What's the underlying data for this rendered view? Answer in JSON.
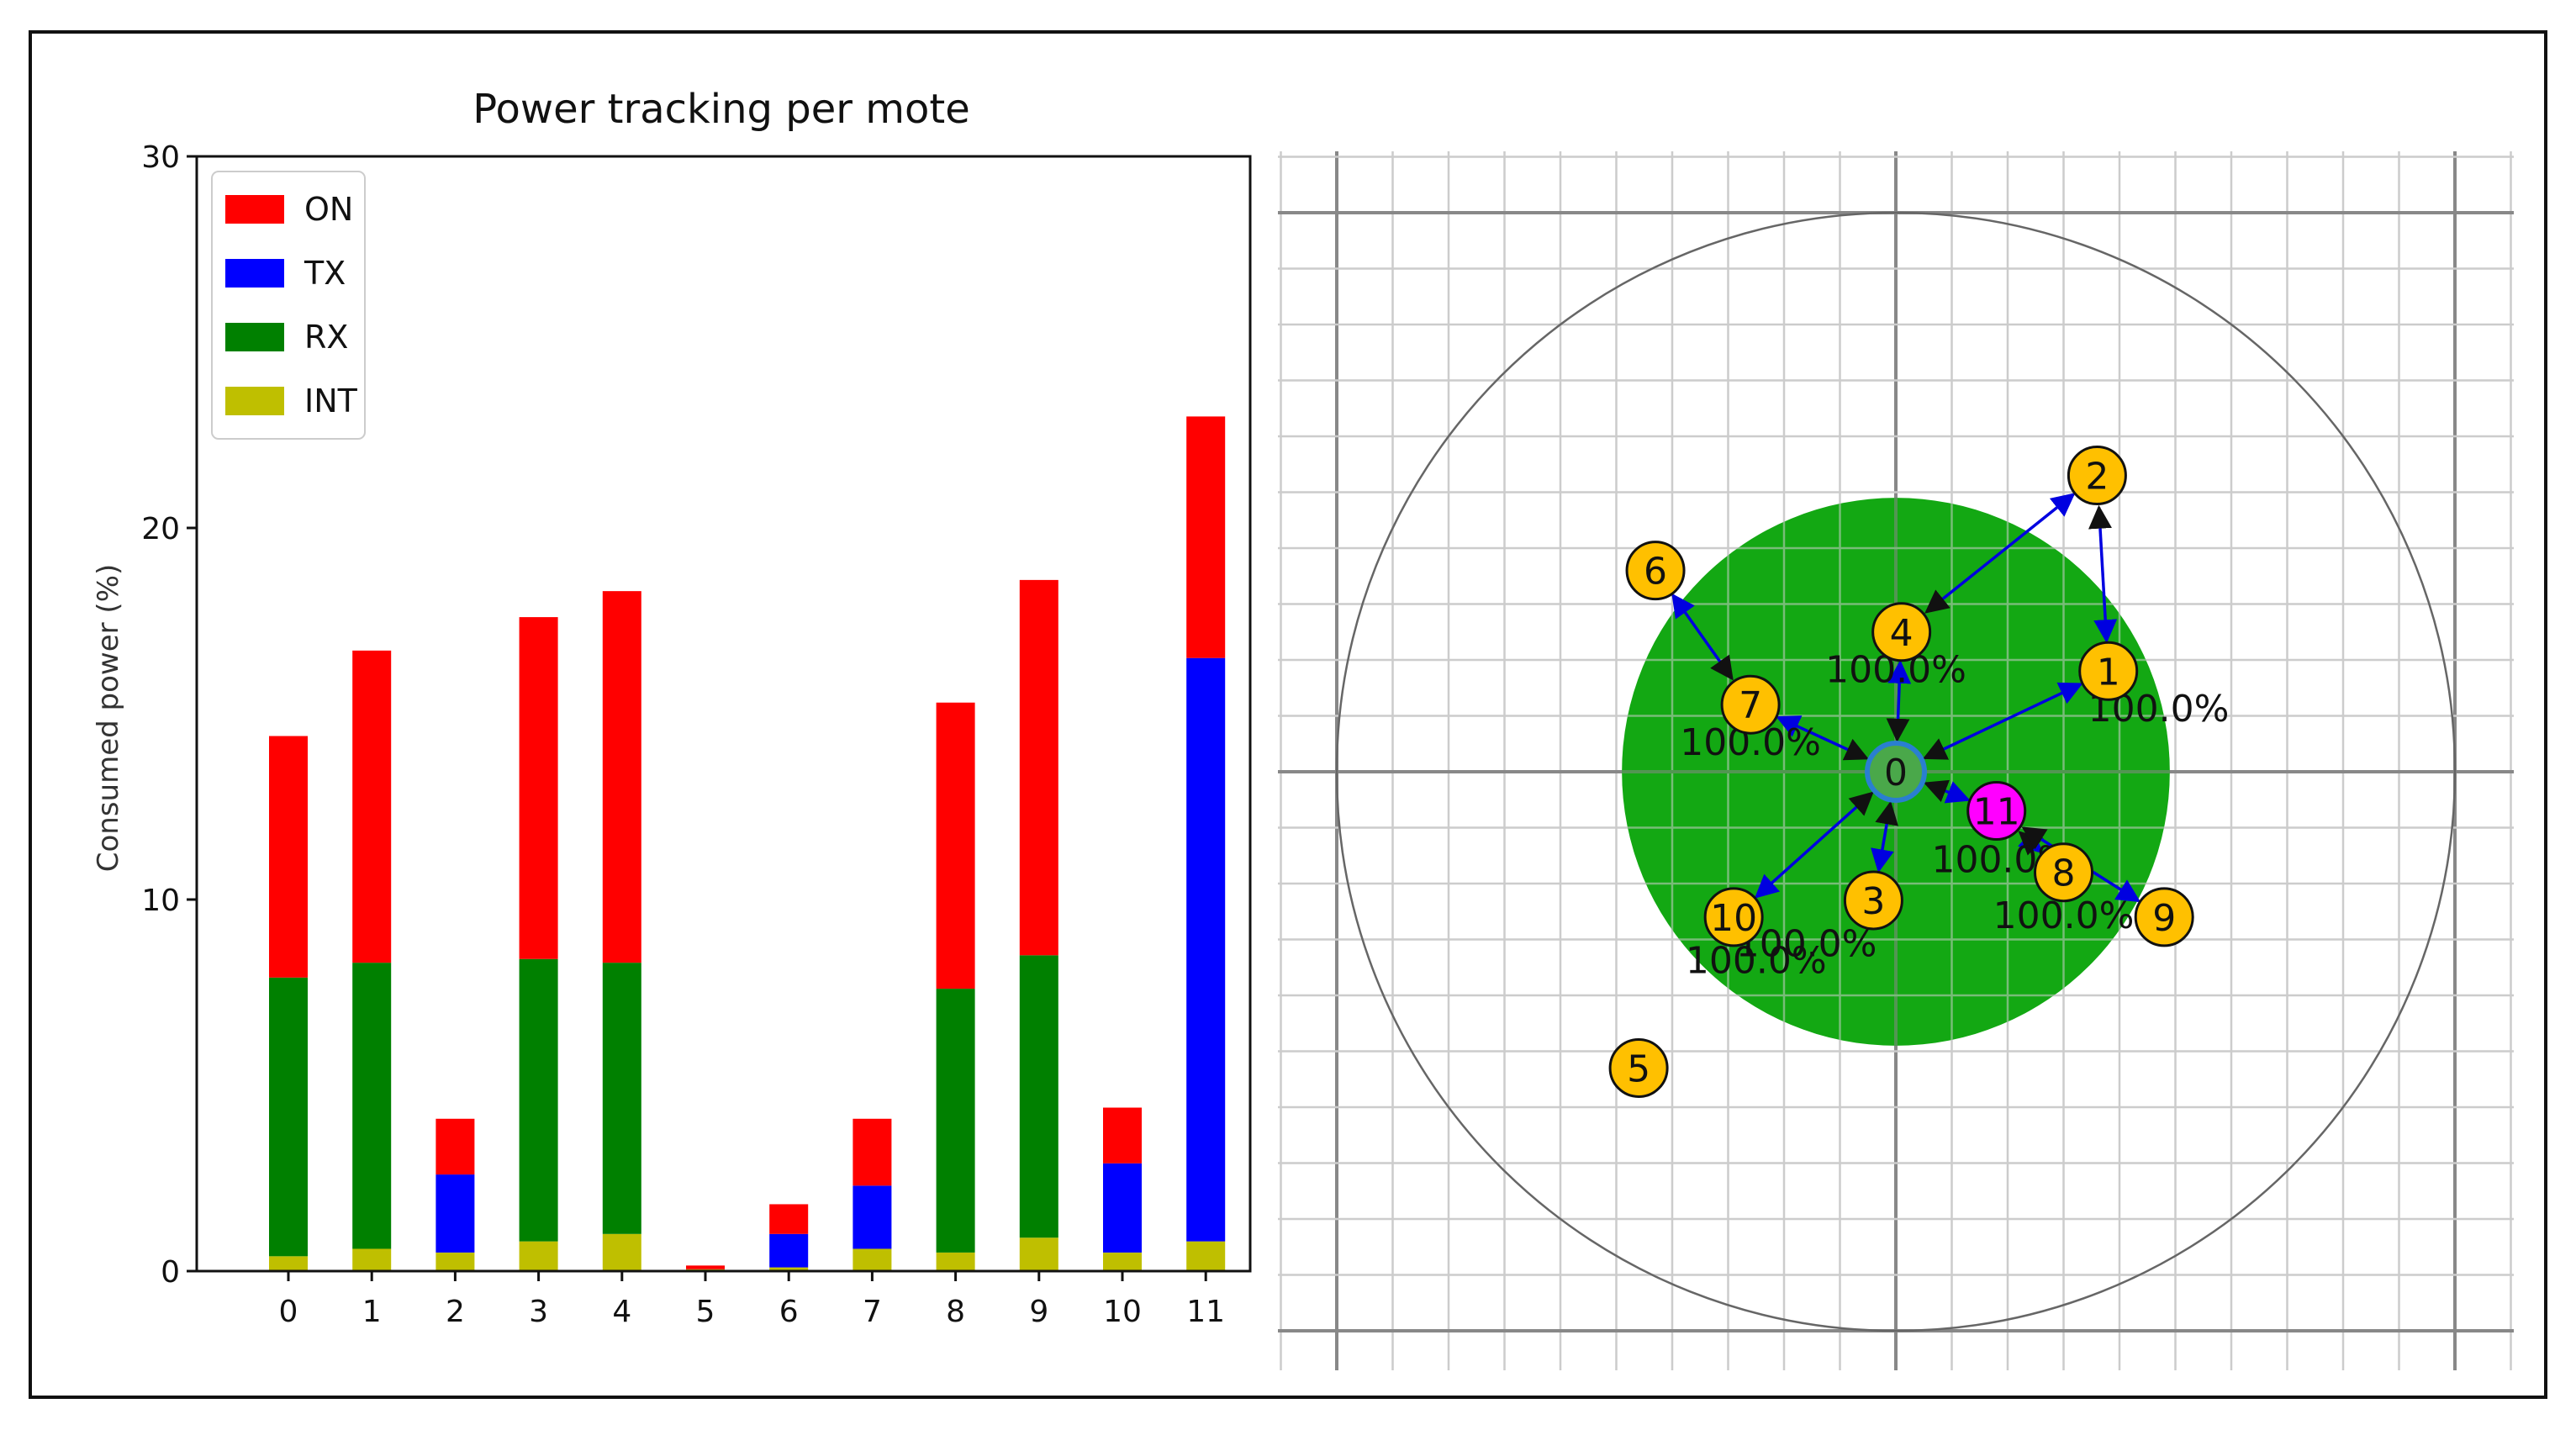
{
  "colors": {
    "on": "#ff0000",
    "tx": "#0000ff",
    "rx": "#008000",
    "int": "#bfbf00",
    "range_fill": "#13a813",
    "mote_fill": "#ffc000",
    "root_fill": "#4aa84a",
    "root_stroke": "#2a7fd0",
    "highlight_mote_fill": "#ff00ff",
    "link": "#0000e0"
  },
  "chart_data": {
    "type": "bar",
    "stacked": true,
    "title": "Power tracking per mote",
    "xlabel": "",
    "ylabel": "Consumed power (%)",
    "ylim": [
      0,
      30
    ],
    "yticks": [
      0,
      10,
      20,
      30
    ],
    "grid": false,
    "legend_position": "top-left",
    "categories": [
      "0",
      "1",
      "2",
      "3",
      "4",
      "5",
      "6",
      "7",
      "8",
      "9",
      "10",
      "11"
    ],
    "series": [
      {
        "name": "INT",
        "color_key": "int",
        "values": [
          0.4,
          0.6,
          0.5,
          0.8,
          1.0,
          0.05,
          0.1,
          0.6,
          0.5,
          0.9,
          0.5,
          0.8
        ]
      },
      {
        "name": "RX",
        "color_key": "rx",
        "values": [
          7.5,
          7.7,
          0.0,
          7.6,
          7.3,
          0.0,
          0.0,
          0.0,
          7.1,
          7.6,
          0.0,
          0.0
        ]
      },
      {
        "name": "TX",
        "color_key": "tx",
        "values": [
          0.0,
          0.0,
          2.1,
          0.0,
          0.0,
          0.0,
          0.9,
          1.7,
          0.0,
          0.0,
          2.4,
          15.7
        ]
      },
      {
        "name": "ON",
        "color_key": "on",
        "values": [
          6.5,
          8.4,
          1.5,
          9.2,
          10.0,
          0.1,
          0.8,
          1.8,
          7.7,
          10.1,
          1.5,
          6.5
        ]
      }
    ],
    "legend": [
      {
        "label": "ON",
        "color_key": "on"
      },
      {
        "label": "TX",
        "color_key": "tx"
      },
      {
        "label": "RX",
        "color_key": "rx"
      },
      {
        "label": "INT",
        "color_key": "int"
      }
    ]
  },
  "network": {
    "plot_type": "mote topology grid",
    "x_range": [
      -10,
      10
    ],
    "y_range": [
      -10,
      10
    ],
    "grid_step": 1,
    "major_step": 10,
    "range_circle_radius": 10,
    "green_region_radius": 5,
    "root_mote": "0",
    "highlight_mote": "11",
    "motes": [
      {
        "id": "0",
        "x": 0.0,
        "y": 0.0
      },
      {
        "id": "1",
        "x": 3.8,
        "y": 1.8
      },
      {
        "id": "2",
        "x": 3.6,
        "y": 5.3
      },
      {
        "id": "3",
        "x": -0.4,
        "y": -2.3
      },
      {
        "id": "4",
        "x": 0.1,
        "y": 2.5
      },
      {
        "id": "5",
        "x": -4.6,
        "y": -5.3
      },
      {
        "id": "6",
        "x": -4.3,
        "y": 3.6
      },
      {
        "id": "7",
        "x": -2.6,
        "y": 1.2
      },
      {
        "id": "8",
        "x": 3.0,
        "y": -1.8
      },
      {
        "id": "9",
        "x": 4.8,
        "y": -2.6
      },
      {
        "id": "10",
        "x": -2.9,
        "y": -2.6
      },
      {
        "id": "11",
        "x": 1.8,
        "y": -0.7
      }
    ],
    "links": [
      {
        "from": "1",
        "to": "0"
      },
      {
        "from": "1",
        "to": "2"
      },
      {
        "from": "2",
        "to": "4"
      },
      {
        "from": "4",
        "to": "0"
      },
      {
        "from": "6",
        "to": "7"
      },
      {
        "from": "7",
        "to": "0"
      },
      {
        "from": "3",
        "to": "0"
      },
      {
        "from": "10",
        "to": "0"
      },
      {
        "from": "11",
        "to": "0"
      },
      {
        "from": "8",
        "to": "11"
      },
      {
        "from": "9",
        "to": "11"
      }
    ],
    "link_labels": [
      {
        "text": "100.0%",
        "x": 0.0,
        "y": 1.6
      },
      {
        "text": "100.0%",
        "x": 4.7,
        "y": 0.9
      },
      {
        "text": "100.0%",
        "x": -2.6,
        "y": 0.3
      },
      {
        "text": "100.0%",
        "x": 1.9,
        "y": -1.8
      },
      {
        "text": "100.0%",
        "x": 3.0,
        "y": -2.8
      },
      {
        "text": "100.0%",
        "x": -1.6,
        "y": -3.3
      },
      {
        "text": "100.0%",
        "x": -2.5,
        "y": -3.6
      }
    ]
  }
}
